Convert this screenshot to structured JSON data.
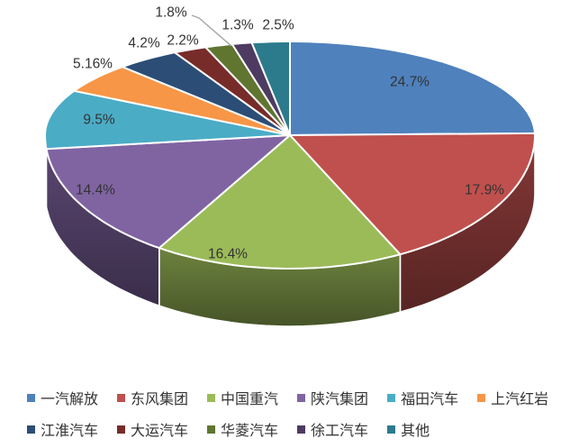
{
  "chart_data": {
    "type": "pie",
    "projection": "3d",
    "title": "",
    "categories": [
      "一汽解放",
      "东风集团",
      "中国重汽",
      "陕汽集团",
      "福田汽车",
      "上汽红岩",
      "江淮汽车",
      "大运汽车",
      "华菱汽车",
      "徐工汽车",
      "其他"
    ],
    "values": [
      24.7,
      17.9,
      16.4,
      14.4,
      9.5,
      5.16,
      4.2,
      2.2,
      1.8,
      1.3,
      2.5
    ],
    "data_labels": [
      "24.7%",
      "17.9%",
      "16.4%",
      "14.4%",
      "9.5%",
      "5.16%",
      "4.2%",
      "2.2%",
      "1.8%",
      "1.3%",
      "2.5%"
    ],
    "colors": [
      "#4F81BD",
      "#C0504D",
      "#9BBB59",
      "#8064A2",
      "#4BACC6",
      "#F79646",
      "#2C4D75",
      "#772C2A",
      "#5F7530",
      "#4D3B62",
      "#2C7B8C"
    ],
    "legend_position": "bottom",
    "legend_row_split": [
      6,
      5
    ],
    "background": "#FFFFFF",
    "data_label_color": "#333333",
    "leader_line_color": "#A6A6A6"
  }
}
